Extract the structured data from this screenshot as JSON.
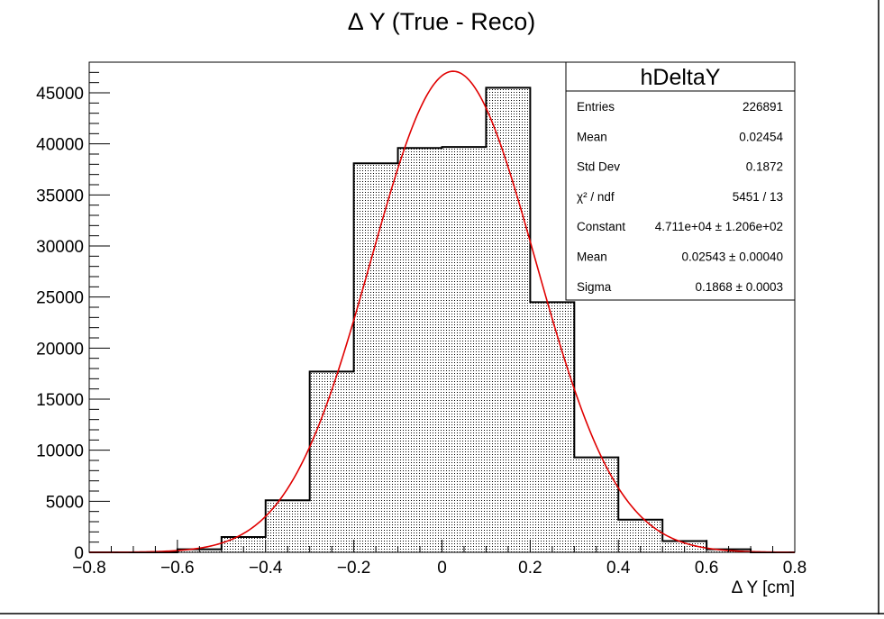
{
  "chart_data": {
    "type": "histogram",
    "title": "Δ Y (True - Reco)",
    "xlabel": "Δ Y [cm]",
    "ylabel": "",
    "xlim": [
      -0.8,
      0.8
    ],
    "ylim": [
      0,
      48000
    ],
    "x_ticks": [
      "−0.8",
      "−0.6",
      "−0.4",
      "−0.2",
      "0",
      "0.2",
      "0.4",
      "0.6",
      "0.8"
    ],
    "x_tick_values": [
      -0.8,
      -0.6,
      -0.4,
      -0.2,
      0,
      0.2,
      0.4,
      0.6,
      0.8
    ],
    "y_ticks": [
      "0",
      "5000",
      "10000",
      "15000",
      "20000",
      "25000",
      "30000",
      "35000",
      "40000",
      "45000"
    ],
    "y_tick_values": [
      0,
      5000,
      10000,
      15000,
      20000,
      25000,
      30000,
      35000,
      40000,
      45000
    ],
    "bins": {
      "edges": [
        -0.8,
        -0.7,
        -0.6,
        -0.5,
        -0.4,
        -0.3,
        -0.2,
        -0.1,
        0.0,
        0.1,
        0.2,
        0.3,
        0.4,
        0.5,
        0.6,
        0.7,
        0.8
      ],
      "counts": [
        0,
        0,
        300,
        1500,
        5100,
        17700,
        38100,
        39600,
        39700,
        45500,
        24500,
        9300,
        3200,
        1100,
        300,
        0
      ]
    },
    "fit": {
      "name": "gaus",
      "constant": 47110,
      "mean": 0.02543,
      "sigma": 0.1868,
      "color": "#e00000"
    },
    "stats_box": {
      "title": "hDeltaY",
      "rows": [
        {
          "label": "Entries",
          "value": "226891"
        },
        {
          "label": "Mean",
          "value": "0.02454"
        },
        {
          "label": "Std Dev",
          "value": "0.1872"
        },
        {
          "label": "χ² / ndf",
          "value": "5451 / 13"
        },
        {
          "label": "Constant",
          "value": "4.711e+04 ± 1.206e+02"
        },
        {
          "label": "Mean",
          "value": "0.02543 ± 0.00040"
        },
        {
          "label": "Sigma",
          "value": "0.1868 ± 0.0003"
        }
      ]
    },
    "grid": false,
    "legend": "top-right",
    "fill_style": "dotted hatch",
    "line_color": "#000000"
  }
}
